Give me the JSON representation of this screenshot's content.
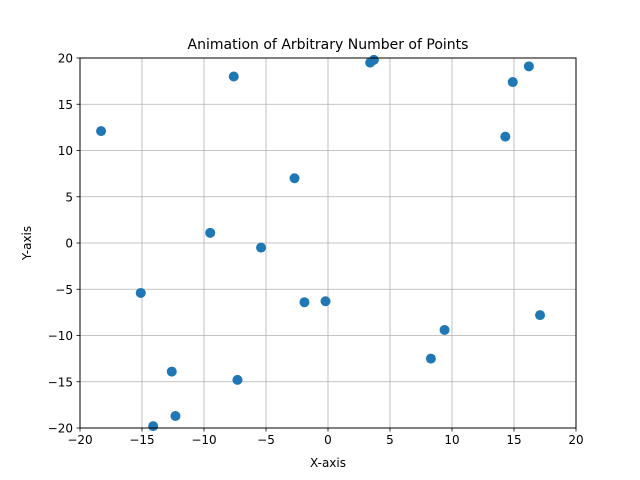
{
  "chart_data": {
    "type": "scatter",
    "title": "Animation of Arbitrary Number of Points",
    "xlabel": "X-axis",
    "ylabel": "Y-axis",
    "xlim": [
      -20,
      20
    ],
    "ylim": [
      -20,
      20
    ],
    "xticks": [
      -20,
      -15,
      -10,
      -5,
      0,
      5,
      10,
      15,
      20
    ],
    "yticks": [
      -20,
      -15,
      -10,
      -5,
      0,
      5,
      10,
      15,
      20
    ],
    "grid": true,
    "point_color": "#1f77b4",
    "points": [
      {
        "x": -18.3,
        "y": 12.1
      },
      {
        "x": -7.6,
        "y": 18.0
      },
      {
        "x": 3.4,
        "y": 19.5
      },
      {
        "x": 3.7,
        "y": 19.8
      },
      {
        "x": 16.2,
        "y": 19.1
      },
      {
        "x": 14.9,
        "y": 17.4
      },
      {
        "x": 14.3,
        "y": 11.5
      },
      {
        "x": -2.7,
        "y": 7.0
      },
      {
        "x": -9.5,
        "y": 1.1
      },
      {
        "x": -5.4,
        "y": -0.5
      },
      {
        "x": -15.1,
        "y": -5.4
      },
      {
        "x": -1.9,
        "y": -6.4
      },
      {
        "x": -0.2,
        "y": -6.3
      },
      {
        "x": 17.1,
        "y": -7.8
      },
      {
        "x": 9.4,
        "y": -9.4
      },
      {
        "x": 8.3,
        "y": -12.5
      },
      {
        "x": -12.6,
        "y": -13.9
      },
      {
        "x": -7.3,
        "y": -14.8
      },
      {
        "x": -12.3,
        "y": -18.7
      },
      {
        "x": -14.1,
        "y": -19.8
      }
    ]
  }
}
